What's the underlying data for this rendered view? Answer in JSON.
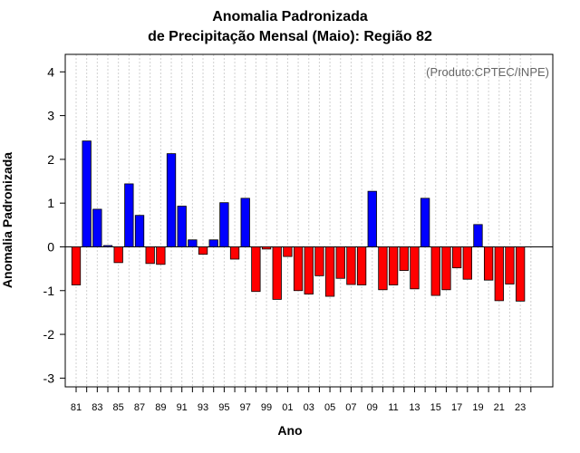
{
  "chart_data": {
    "type": "bar",
    "title": "Anomalia Padronizada",
    "subtitle": "de Precipitação Mensal (Maio): Região 82",
    "xlabel": "Ano",
    "ylabel": "Anomalia Padronizada",
    "annotation": "(Produto:CPTEC/INPE)",
    "ylim": [
      -3.2,
      4.4
    ],
    "y_ticks": [
      -3,
      -2,
      -1,
      0,
      1,
      2,
      3,
      4
    ],
    "x_tick_labels": [
      "81",
      "83",
      "85",
      "87",
      "89",
      "91",
      "93",
      "95",
      "97",
      "99",
      "01",
      "03",
      "05",
      "07",
      "09",
      "11",
      "13",
      "15",
      "17",
      "19",
      "21",
      "23"
    ],
    "positive_color": "#0000ff",
    "negative_color": "#ff0000",
    "categories": [
      "1981",
      "1982",
      "1983",
      "1984",
      "1985",
      "1986",
      "1987",
      "1988",
      "1989",
      "1990",
      "1991",
      "1992",
      "1993",
      "1994",
      "1995",
      "1996",
      "1997",
      "1998",
      "1999",
      "2000",
      "2001",
      "2002",
      "2003",
      "2004",
      "2005",
      "2006",
      "2007",
      "2008",
      "2009",
      "2010",
      "2011",
      "2012",
      "2013",
      "2014",
      "2015",
      "2016",
      "2017",
      "2018",
      "2019",
      "2020",
      "2021",
      "2022",
      "2023",
      "2024"
    ],
    "values": [
      -0.87,
      2.42,
      0.86,
      0.03,
      -0.36,
      1.44,
      0.72,
      -0.38,
      -0.4,
      2.13,
      0.93,
      0.16,
      -0.17,
      0.16,
      1.01,
      -0.28,
      1.11,
      -1.02,
      -0.05,
      -1.2,
      -0.22,
      -1.0,
      -1.08,
      -0.66,
      -1.13,
      -0.72,
      -0.86,
      -0.87,
      1.27,
      -0.98,
      -0.87,
      -0.54,
      -0.96,
      1.11,
      -1.11,
      -0.98,
      -0.48,
      -0.74,
      0.51,
      -0.76,
      -1.23,
      -0.85,
      -1.24,
      0.0
    ]
  }
}
